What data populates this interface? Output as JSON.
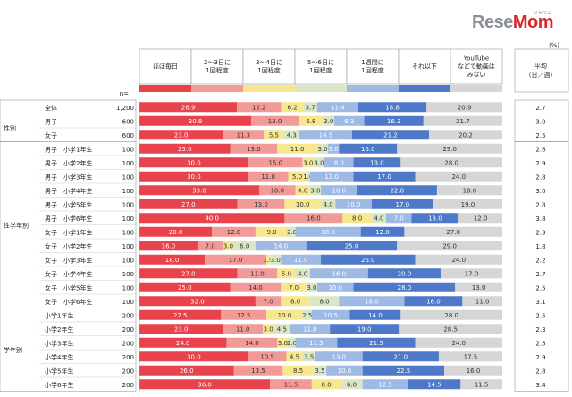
{
  "logo": {
    "text_re": "Rese",
    "text_mo": "Mom",
    "sub": "リセマム"
  },
  "unit": "(%)",
  "colors": [
    "#e8424d",
    "#f29a98",
    "#f7e78e",
    "#d9e7c4",
    "#9db9e4",
    "#4e78c8",
    "#d6d6d6"
  ],
  "label_colors": [
    "#ffffff",
    "#333333",
    "#333333",
    "#333333",
    "#ffffff",
    "#ffffff",
    "#333333"
  ],
  "chart_data": {
    "type": "bar",
    "stacked": true,
    "orientation": "horizontal",
    "legend": [
      "ほぼ毎日",
      "2～3日に\n1回程度",
      "3～4日に\n1回程度",
      "5～6日に\n1回程度",
      "1週間に\n1回程度",
      "それ以下",
      "YouTube\nなどで動画は\nみない"
    ],
    "n_header": "n=",
    "avg_header": "平均\n（日／週）",
    "groups": [
      {
        "label": "",
        "start": 0,
        "end": 0
      },
      {
        "label": "性別",
        "start": 1,
        "end": 2
      },
      {
        "label": "性学年別",
        "start": 3,
        "end": 14
      },
      {
        "label": "学年別",
        "start": 15,
        "end": 20
      }
    ],
    "rows": [
      {
        "label": "全体",
        "n": "1,200",
        "values": [
          26.9,
          12.2,
          6.2,
          3.7,
          11.4,
          18.8,
          20.9
        ],
        "avg": "2.7"
      },
      {
        "label": "男子",
        "n": "600",
        "values": [
          30.8,
          13.0,
          6.8,
          3.0,
          8.3,
          16.3,
          21.7
        ],
        "avg": "3.0"
      },
      {
        "label": "女子",
        "n": "600",
        "values": [
          23.0,
          11.3,
          5.5,
          4.3,
          14.5,
          21.2,
          20.2
        ],
        "avg": "2.5"
      },
      {
        "label": "男子　小学1年生",
        "n": "100",
        "values": [
          25.0,
          13.0,
          11.0,
          3.0,
          3.0,
          16.0,
          29.0
        ],
        "avg": "2.6"
      },
      {
        "label": "男子　小学2年生",
        "n": "100",
        "values": [
          30.0,
          15.0,
          3.0,
          3.0,
          8.0,
          13.0,
          28.0
        ],
        "avg": "2.9"
      },
      {
        "label": "男子　小学3年生",
        "n": "100",
        "values": [
          30.0,
          11.0,
          5.0,
          1.0,
          12.0,
          17.0,
          24.0
        ],
        "avg": "2.8"
      },
      {
        "label": "男子　小学4年生",
        "n": "100",
        "values": [
          33.0,
          10.0,
          4.0,
          3.0,
          10.0,
          22.0,
          18.0
        ],
        "avg": "3.0"
      },
      {
        "label": "男子　小学5年生",
        "n": "100",
        "values": [
          27.0,
          13.0,
          10.0,
          4.0,
          10.0,
          17.0,
          19.0
        ],
        "avg": "2.8"
      },
      {
        "label": "男子　小学6年生",
        "n": "100",
        "values": [
          40.0,
          16.0,
          8.0,
          4.0,
          7.0,
          13.0,
          12.0
        ],
        "avg": "3.8"
      },
      {
        "label": "女子　小学1年生",
        "n": "100",
        "values": [
          20.0,
          12.0,
          9.0,
          2.0,
          18.0,
          12.0,
          27.0
        ],
        "avg": "2.3"
      },
      {
        "label": "女子　小学2年生",
        "n": "100",
        "values": [
          16.0,
          7.0,
          3.0,
          6.0,
          14.0,
          25.0,
          29.0
        ],
        "avg": "1.8"
      },
      {
        "label": "女子　小学3年生",
        "n": "100",
        "values": [
          18.0,
          17.0,
          1.0,
          3.0,
          11.0,
          26.0,
          24.0
        ],
        "avg": "2.2"
      },
      {
        "label": "女子　小学4年生",
        "n": "100",
        "values": [
          27.0,
          11.0,
          5.0,
          4.0,
          16.0,
          20.0,
          17.0
        ],
        "avg": "2.7"
      },
      {
        "label": "女子　小学5年生",
        "n": "100",
        "values": [
          25.0,
          14.0,
          7.0,
          3.0,
          10.0,
          28.0,
          13.0
        ],
        "avg": "2.5"
      },
      {
        "label": "女子　小学6年生",
        "n": "100",
        "values": [
          32.0,
          7.0,
          8.0,
          8.0,
          18.0,
          16.0,
          11.0
        ],
        "avg": "3.1"
      },
      {
        "label": "小学1年生",
        "n": "200",
        "values": [
          22.5,
          12.5,
          10.0,
          2.5,
          10.5,
          14.0,
          28.0
        ],
        "avg": "2.5"
      },
      {
        "label": "小学2年生",
        "n": "200",
        "values": [
          23.0,
          11.0,
          3.0,
          4.5,
          11.0,
          19.0,
          28.5
        ],
        "avg": "2.3"
      },
      {
        "label": "小学3年生",
        "n": "200",
        "values": [
          24.0,
          14.0,
          3.0,
          2.0,
          11.5,
          21.5,
          24.0
        ],
        "avg": "2.5"
      },
      {
        "label": "小学4年生",
        "n": "200",
        "values": [
          30.0,
          10.5,
          4.5,
          3.5,
          13.0,
          21.0,
          17.5
        ],
        "avg": "2.9"
      },
      {
        "label": "小学5年生",
        "n": "200",
        "values": [
          26.0,
          13.5,
          8.5,
          3.5,
          10.0,
          22.5,
          16.0
        ],
        "avg": "2.8"
      },
      {
        "label": "小学6年生",
        "n": "200",
        "values": [
          36.0,
          11.5,
          8.0,
          6.0,
          12.5,
          14.5,
          11.5
        ],
        "avg": "3.4"
      }
    ]
  }
}
